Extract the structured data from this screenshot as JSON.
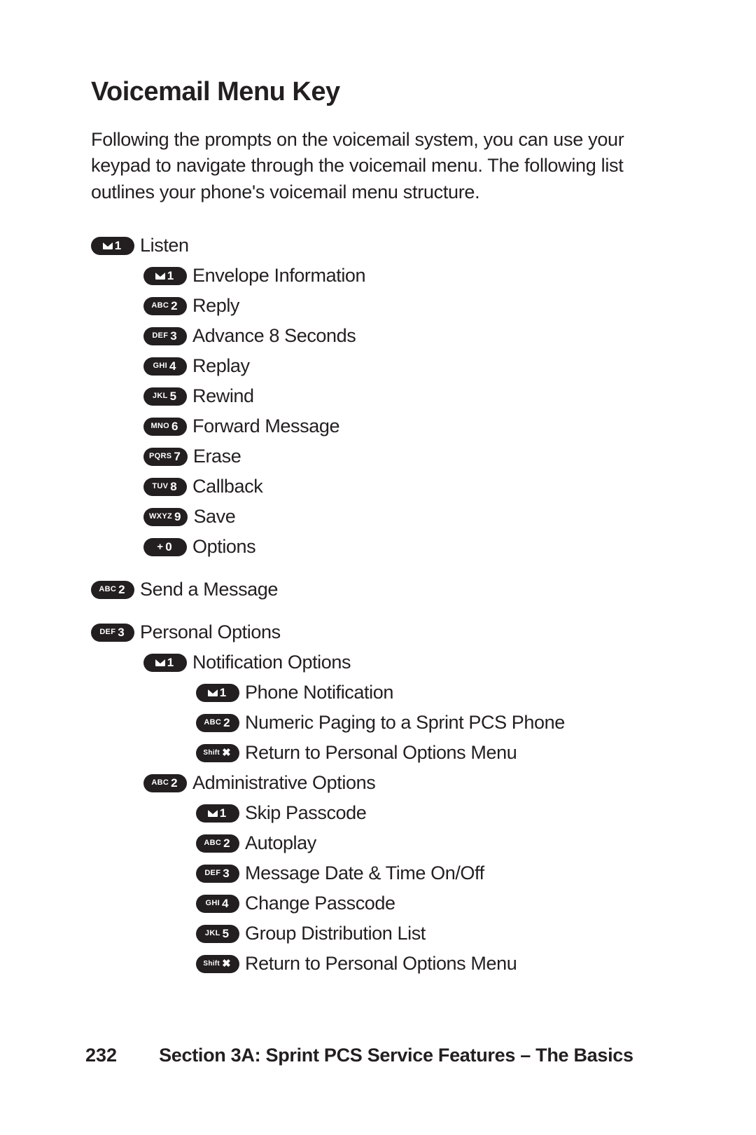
{
  "heading": "Voicemail Menu Key",
  "intro": "Following the prompts on the voicemail system, you can use your keypad to navigate through the voicemail menu. The following list outlines your phone's voicemail menu structure.",
  "items": [
    {
      "level": 0,
      "key_sub": "ENV",
      "key_num": "1",
      "label": "Listen",
      "gap_before": false
    },
    {
      "level": 1,
      "key_sub": "ENV",
      "key_num": "1",
      "label": "Envelope Information",
      "gap_before": false
    },
    {
      "level": 1,
      "key_sub": "ABC",
      "key_num": "2",
      "label": "Reply",
      "gap_before": false
    },
    {
      "level": 1,
      "key_sub": "DEF",
      "key_num": "3",
      "label": "Advance 8 Seconds",
      "gap_before": false
    },
    {
      "level": 1,
      "key_sub": "GHI",
      "key_num": "4",
      "label": "Replay",
      "gap_before": false
    },
    {
      "level": 1,
      "key_sub": "JKL",
      "key_num": "5",
      "label": "Rewind",
      "gap_before": false
    },
    {
      "level": 1,
      "key_sub": "MNO",
      "key_num": "6",
      "label": "Forward Message",
      "gap_before": false
    },
    {
      "level": 1,
      "key_sub": "PQRS",
      "key_num": "7",
      "label": "Erase",
      "gap_before": false
    },
    {
      "level": 1,
      "key_sub": "TUV",
      "key_num": "8",
      "label": "Callback",
      "gap_before": false
    },
    {
      "level": 1,
      "key_sub": "WXYZ",
      "key_num": "9",
      "label": "Save",
      "gap_before": false
    },
    {
      "level": 1,
      "key_sub": "+",
      "key_num": "0",
      "label": "Options",
      "gap_before": false
    },
    {
      "level": 0,
      "key_sub": "ABC",
      "key_num": "2",
      "label": "Send a Message",
      "gap_before": true
    },
    {
      "level": 0,
      "key_sub": "DEF",
      "key_num": "3",
      "label": "Personal Options",
      "gap_before": true
    },
    {
      "level": 1,
      "key_sub": "ENV",
      "key_num": "1",
      "label": "Notification Options",
      "gap_before": false
    },
    {
      "level": 2,
      "key_sub": "ENV",
      "key_num": "1",
      "label": "Phone Notification",
      "gap_before": false
    },
    {
      "level": 2,
      "key_sub": "ABC",
      "key_num": "2",
      "label": "Numeric Paging to a Sprint PCS Phone",
      "gap_before": false
    },
    {
      "level": 2,
      "key_sub": "Shift",
      "key_num": "X",
      "label": "Return to Personal Options Menu",
      "gap_before": false
    },
    {
      "level": 1,
      "key_sub": "ABC",
      "key_num": "2",
      "label": "Administrative Options",
      "gap_before": false
    },
    {
      "level": 2,
      "key_sub": "ENV",
      "key_num": "1",
      "label": "Skip Passcode",
      "gap_before": false
    },
    {
      "level": 2,
      "key_sub": "ABC",
      "key_num": "2",
      "label": "Autoplay",
      "gap_before": false
    },
    {
      "level": 2,
      "key_sub": "DEF",
      "key_num": "3",
      "label": "Message Date & Time On/Off",
      "gap_before": false
    },
    {
      "level": 2,
      "key_sub": "GHI",
      "key_num": "4",
      "label": "Change Passcode",
      "gap_before": false
    },
    {
      "level": 2,
      "key_sub": "JKL",
      "key_num": "5",
      "label": "Group Distribution List",
      "gap_before": false
    },
    {
      "level": 2,
      "key_sub": "Shift",
      "key_num": "X",
      "label": "Return to Personal Options Menu",
      "gap_before": false
    }
  ],
  "footer": {
    "page": "232",
    "title": "Section 3A: Sprint PCS Service Features – The Basics"
  }
}
